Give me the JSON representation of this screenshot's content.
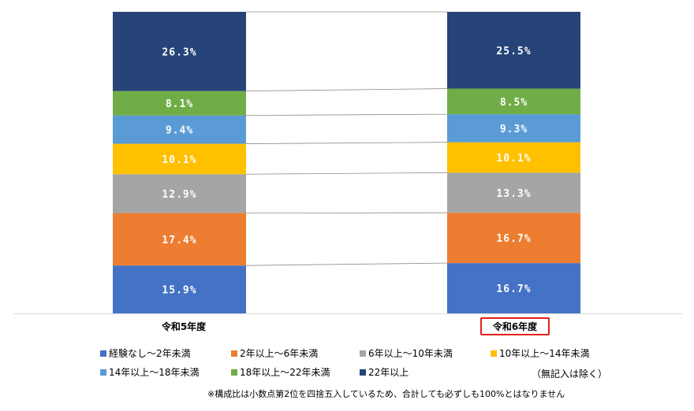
{
  "chart_data": {
    "type": "bar",
    "stacked": true,
    "categories": [
      "令和5年度",
      "令和6年度"
    ],
    "series": [
      {
        "name": "経験なし～2年未満",
        "values": [
          15.9,
          16.7
        ],
        "color": "#4472c4",
        "labels": [
          "15.9%",
          "16.7%"
        ]
      },
      {
        "name": "2年以上～6年未満",
        "values": [
          17.4,
          16.7
        ],
        "color": "#ed7d31",
        "labels": [
          "17.4%",
          "16.7%"
        ]
      },
      {
        "name": "6年以上～10年未満",
        "values": [
          12.9,
          13.3
        ],
        "color": "#a5a5a5",
        "labels": [
          "12.9%",
          "13.3%"
        ]
      },
      {
        "name": "10年以上～14年未満",
        "values": [
          10.1,
          10.1
        ],
        "color": "#ffc000",
        "labels": [
          "10.1%",
          "10.1%"
        ]
      },
      {
        "name": "14年以上～18年未満",
        "values": [
          9.4,
          9.3
        ],
        "color": "#5b9bd5",
        "labels": [
          "9.4%",
          "9.3%"
        ]
      },
      {
        "name": "18年以上～22年未満",
        "values": [
          8.1,
          8.5
        ],
        "color": "#70ad47",
        "labels": [
          "8.1%",
          "8.5%"
        ]
      },
      {
        "name": "22年以上",
        "values": [
          26.3,
          25.5
        ],
        "color": "#264478",
        "labels": [
          "26.3%",
          "25.5%"
        ]
      }
    ],
    "highlighted_category": "令和6年度",
    "highlight_color": "#e0201b",
    "legend_position": "bottom",
    "grid": false
  },
  "notes": {
    "exclusion": "（無記入は除く）",
    "footnote": "※構成比は小数点第2位を四捨五入しているため、合計しても必ずしも100%とはなりません"
  }
}
